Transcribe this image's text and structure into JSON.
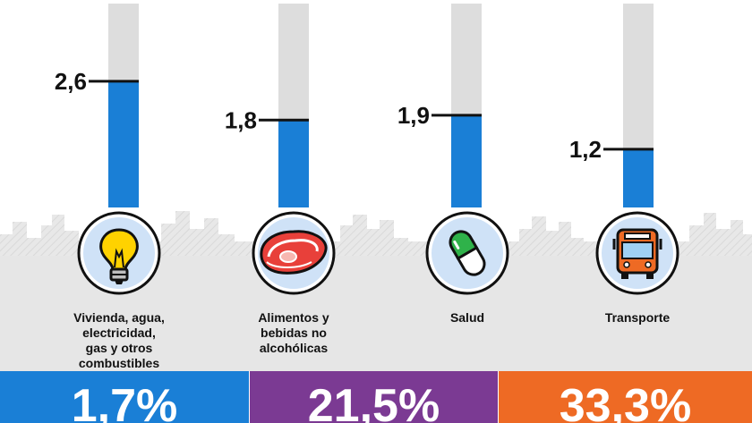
{
  "chart_data": {
    "type": "bar",
    "categories": [
      "Vivienda, agua,\nelectricidad,\ngas y otros\ncombustibles",
      "Alimentos y\nbebidas no\nalcohólicas",
      "Salud",
      "Transporte"
    ],
    "values": [
      2.6,
      1.8,
      1.9,
      1.2
    ],
    "value_labels": [
      "2,6",
      "1,8",
      "1,9",
      "1,2"
    ],
    "icons": [
      "light-bulb-icon",
      "meat-steak-icon",
      "pill-capsule-icon",
      "bus-icon"
    ],
    "ylim": [
      0,
      4.2
    ],
    "colors": {
      "fill": "#1a7fd6",
      "track": "#dddddd"
    },
    "title": "",
    "xlabel": "",
    "ylabel": ""
  },
  "bottom_boxes": [
    {
      "text": "1,7%",
      "color": "#1a7fd6"
    },
    {
      "text": "21,5%",
      "color": "#7b3a93"
    },
    {
      "text": "33,3%",
      "color": "#ee6a24"
    }
  ]
}
